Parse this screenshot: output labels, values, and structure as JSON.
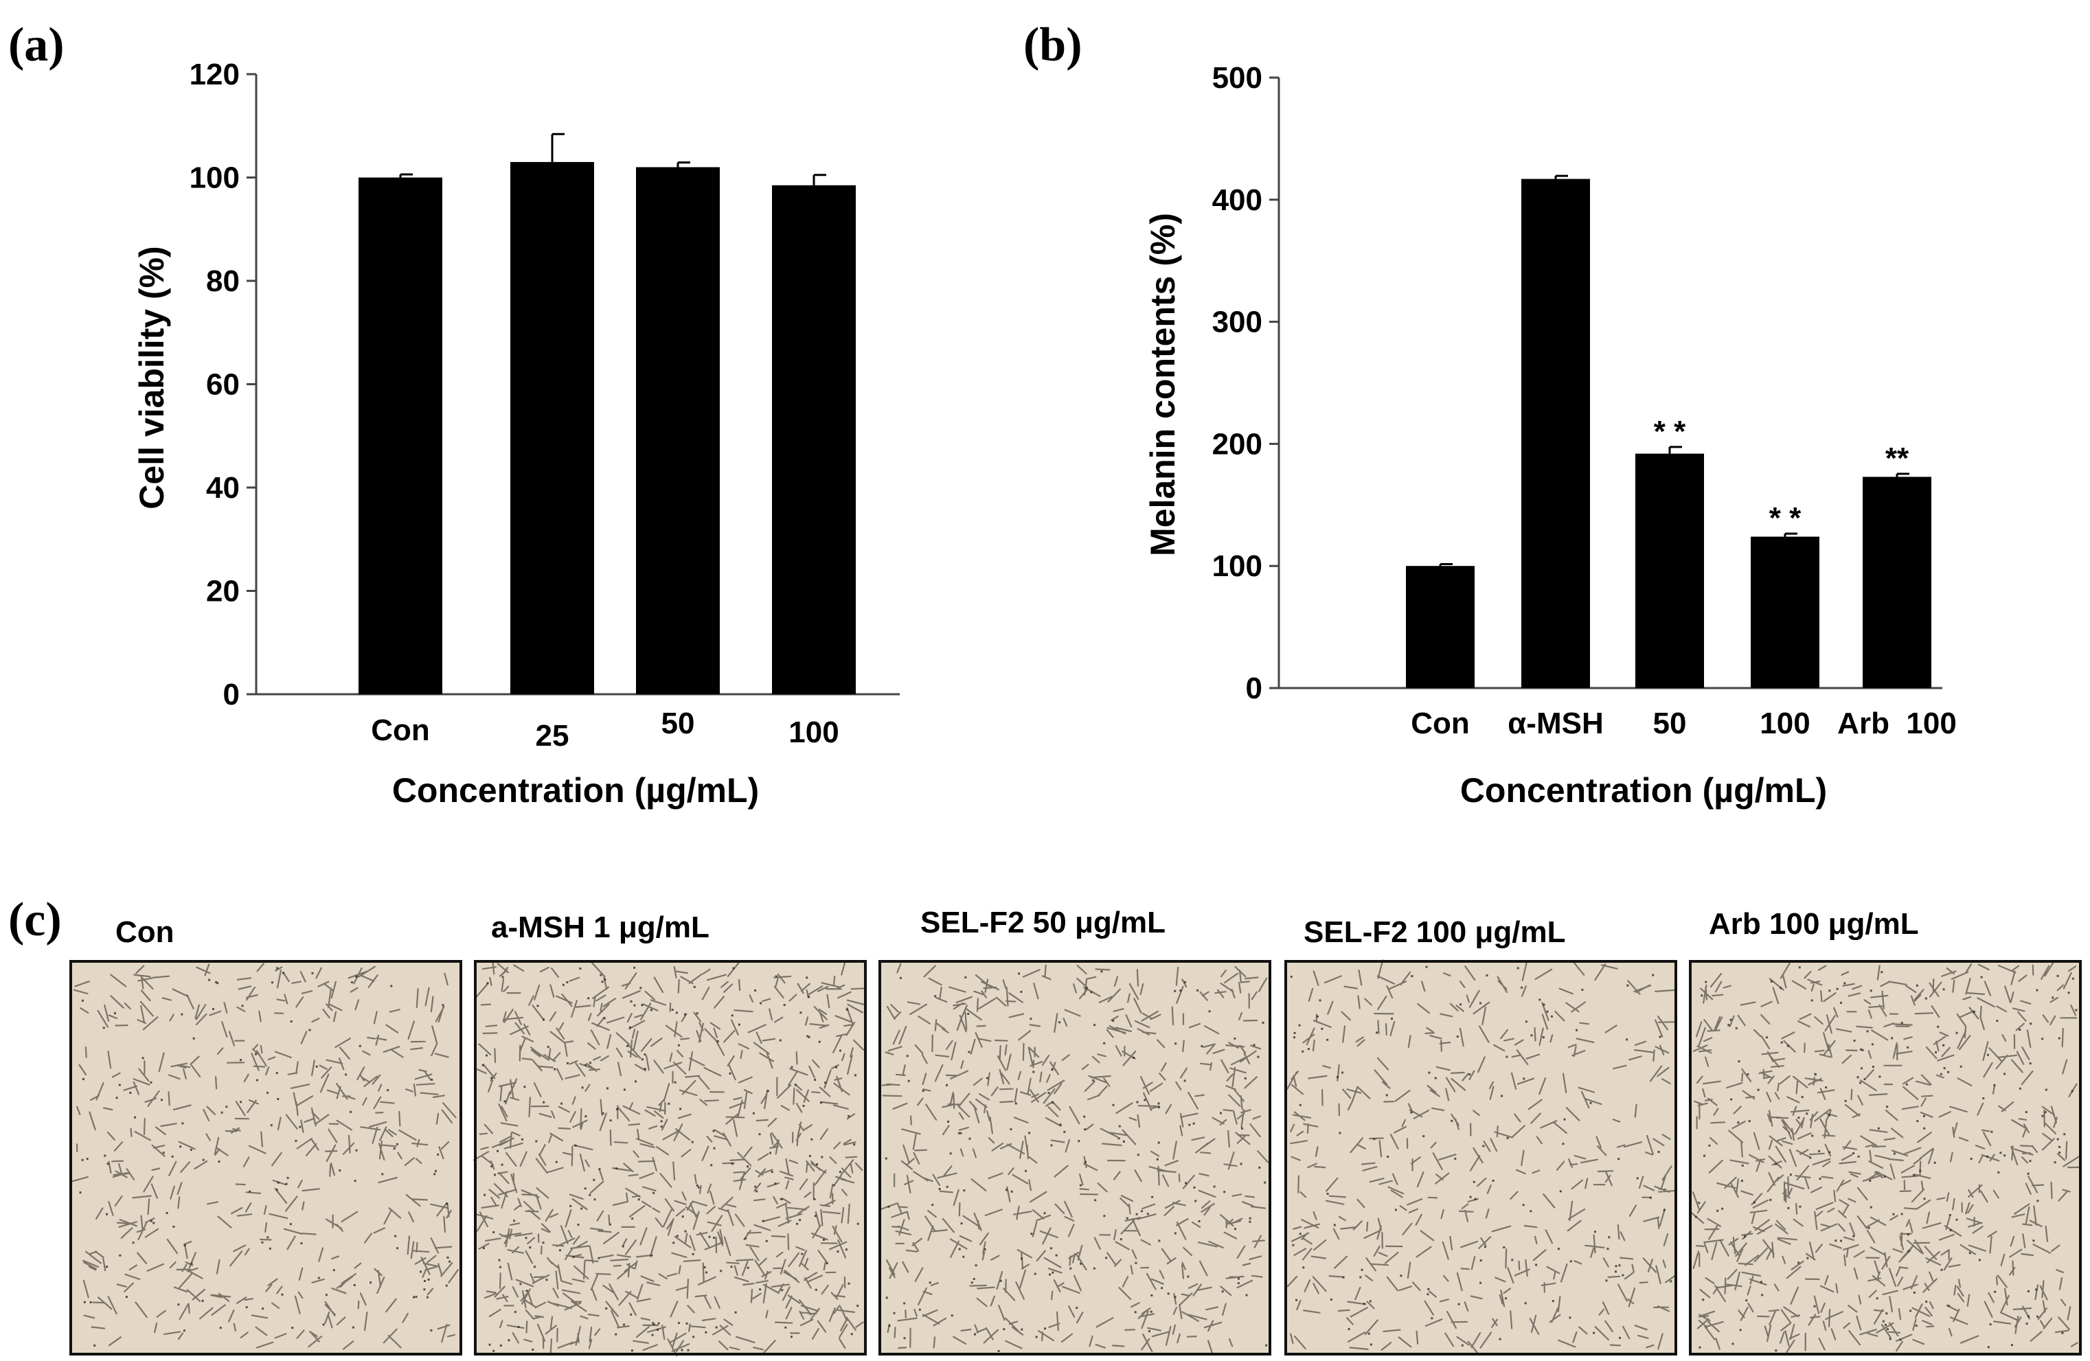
{
  "panels": {
    "a": "(a)",
    "b": "(b)",
    "c": "(c)"
  },
  "colors": {
    "bar": "#000000",
    "axis": "#444444",
    "photo_bg": "#e3d8c6",
    "cell": "#5a5248"
  },
  "chart_data": [
    {
      "id": "a",
      "type": "bar",
      "title": "",
      "categories": [
        "Con",
        "25",
        "50",
        "100"
      ],
      "values": [
        100,
        103,
        102,
        98.5
      ],
      "errors": [
        0.6,
        5.4,
        0.9,
        2.0
      ],
      "significance": [
        "",
        "",
        "",
        ""
      ],
      "xlabel": "Concentration (µg/mL)",
      "ylabel": "Cell viability (%)",
      "ylim": [
        0,
        120
      ],
      "yticks": [
        0,
        20,
        40,
        60,
        80,
        100,
        120
      ],
      "grid": false
    },
    {
      "id": "b",
      "type": "bar",
      "title": "",
      "categories": [
        "Con",
        "α-MSH",
        "50",
        "100",
        "Arb  100"
      ],
      "values": [
        100,
        417,
        192,
        124,
        173
      ],
      "errors": [
        1.5,
        2.5,
        5.5,
        2.5,
        2.5
      ],
      "significance": [
        "",
        "",
        "* *",
        "* *",
        "**"
      ],
      "xlabel": "Concentration (µg/mL)",
      "ylabel": "Melanin contents (%)",
      "ylim": [
        0,
        500
      ],
      "yticks": [
        0,
        100,
        200,
        300,
        400,
        500
      ],
      "grid": false
    }
  ],
  "micrographs": [
    {
      "label": "Con",
      "density": 0.8
    },
    {
      "label": "a-MSH 1 μg/mL",
      "density": 1.35
    },
    {
      "label": "SEL-F2 50 μg/mL",
      "density": 1.0
    },
    {
      "label": "SEL-F2 100 μg/mL",
      "density": 0.75
    },
    {
      "label": "Arb 100 μg/mL",
      "density": 1.2
    }
  ]
}
